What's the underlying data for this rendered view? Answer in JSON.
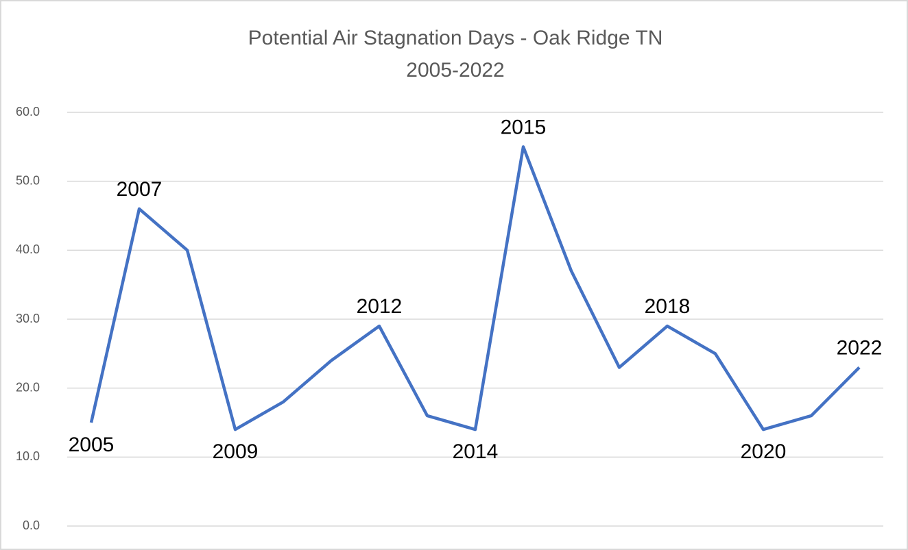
{
  "chart_data": {
    "type": "line",
    "title": "Potential Air Stagnation Days - Oak Ridge TN",
    "subtitle": "2005-2022",
    "categories": [
      "2005",
      "2007",
      null,
      "2009",
      null,
      null,
      "2012",
      null,
      "2014",
      "2015",
      null,
      null,
      "2018",
      null,
      "2020",
      null,
      "2022"
    ],
    "series": [
      {
        "name": "Days",
        "color": "#4472c4",
        "values": [
          15,
          46,
          40,
          14,
          18,
          24,
          29,
          16,
          14,
          55,
          37,
          23,
          29,
          25,
          14,
          16,
          23
        ]
      }
    ],
    "ylim": [
      0,
      60
    ],
    "yticks": [
      {
        "value": 0,
        "label": "0.0"
      },
      {
        "value": 10,
        "label": "10.0"
      },
      {
        "value": 20,
        "label": "20.0"
      },
      {
        "value": 30,
        "label": "30.0"
      },
      {
        "value": 40,
        "label": "40.0"
      },
      {
        "value": 50,
        "label": "50.0"
      },
      {
        "value": 60,
        "label": "60.0"
      }
    ],
    "grid": true
  }
}
